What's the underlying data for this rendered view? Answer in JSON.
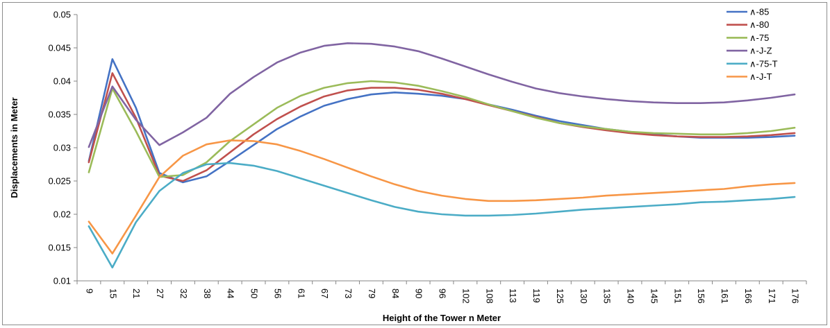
{
  "chart_data": {
    "type": "line",
    "title": "",
    "xlabel": "Height of the Tower n Meter",
    "ylabel": "Displacements in Meter",
    "ylim": [
      0.01,
      0.05
    ],
    "yticks": [
      "0.01",
      "0.015",
      "0.02",
      "0.025",
      "0.03",
      "0.035",
      "0.04",
      "0.045",
      "0.05"
    ],
    "grid": false,
    "legend_position": "top-right",
    "categories": [
      "9",
      "15",
      "21",
      "27",
      "32",
      "38",
      "44",
      "50",
      "56",
      "61",
      "67",
      "73",
      "79",
      "84",
      "90",
      "96",
      "102",
      "108",
      "113",
      "119",
      "125",
      "130",
      "135",
      "140",
      "145",
      "151",
      "156",
      "161",
      "166",
      "171",
      "176"
    ],
    "series": [
      {
        "name": "∧-85",
        "color": "#4472C4",
        "values": [
          0.028,
          0.0433,
          0.036,
          0.0262,
          0.0248,
          0.0257,
          0.028,
          0.0304,
          0.0328,
          0.0347,
          0.0363,
          0.0373,
          0.038,
          0.0383,
          0.0381,
          0.0378,
          0.0373,
          0.0365,
          0.0357,
          0.0348,
          0.034,
          0.0334,
          0.0328,
          0.0324,
          0.032,
          0.0317,
          0.0315,
          0.0315,
          0.0315,
          0.0316,
          0.0318
        ]
      },
      {
        "name": "∧-80",
        "color": "#C0504D",
        "values": [
          0.0278,
          0.0412,
          0.0345,
          0.0258,
          0.025,
          0.0266,
          0.0293,
          0.032,
          0.0343,
          0.0362,
          0.0377,
          0.0386,
          0.039,
          0.039,
          0.0387,
          0.0381,
          0.0373,
          0.0364,
          0.0355,
          0.0346,
          0.0337,
          0.0331,
          0.0326,
          0.0322,
          0.0319,
          0.0317,
          0.0316,
          0.0316,
          0.0317,
          0.0319,
          0.0322
        ]
      },
      {
        "name": "∧-75",
        "color": "#9BBB59",
        "values": [
          0.0263,
          0.0389,
          0.0325,
          0.0256,
          0.0259,
          0.0278,
          0.031,
          0.0335,
          0.036,
          0.0378,
          0.039,
          0.0397,
          0.04,
          0.0398,
          0.0393,
          0.0385,
          0.0376,
          0.0365,
          0.0355,
          0.0345,
          0.0337,
          0.0332,
          0.0328,
          0.0324,
          0.0322,
          0.0321,
          0.032,
          0.032,
          0.0322,
          0.0325,
          0.033
        ]
      },
      {
        "name": "∧-J-Z",
        "color": "#8064A2",
        "values": [
          0.0301,
          0.0392,
          0.0342,
          0.0304,
          0.0323,
          0.0345,
          0.0381,
          0.0406,
          0.0428,
          0.0443,
          0.0453,
          0.0457,
          0.0456,
          0.0452,
          0.0445,
          0.0434,
          0.0422,
          0.041,
          0.0399,
          0.0389,
          0.0382,
          0.0377,
          0.0373,
          0.037,
          0.0368,
          0.0367,
          0.0367,
          0.0368,
          0.0371,
          0.0375,
          0.038
        ]
      },
      {
        "name": "∧-75-T",
        "color": "#4BACC6",
        "values": [
          0.0182,
          0.012,
          0.0188,
          0.0235,
          0.0262,
          0.0275,
          0.0277,
          0.0273,
          0.0265,
          0.0254,
          0.0243,
          0.0232,
          0.0221,
          0.0211,
          0.0204,
          0.02,
          0.0198,
          0.0198,
          0.0199,
          0.0201,
          0.0204,
          0.0207,
          0.0209,
          0.0211,
          0.0213,
          0.0215,
          0.0218,
          0.0219,
          0.0221,
          0.0223,
          0.0226
        ]
      },
      {
        "name": "∧-J-T",
        "color": "#F79646",
        "values": [
          0.0189,
          0.0141,
          0.0198,
          0.0256,
          0.0288,
          0.0305,
          0.0311,
          0.031,
          0.0305,
          0.0295,
          0.0283,
          0.027,
          0.0257,
          0.0245,
          0.0235,
          0.0228,
          0.0223,
          0.022,
          0.022,
          0.0221,
          0.0223,
          0.0225,
          0.0228,
          0.023,
          0.0232,
          0.0234,
          0.0236,
          0.0238,
          0.0242,
          0.0245,
          0.0247
        ]
      }
    ]
  }
}
